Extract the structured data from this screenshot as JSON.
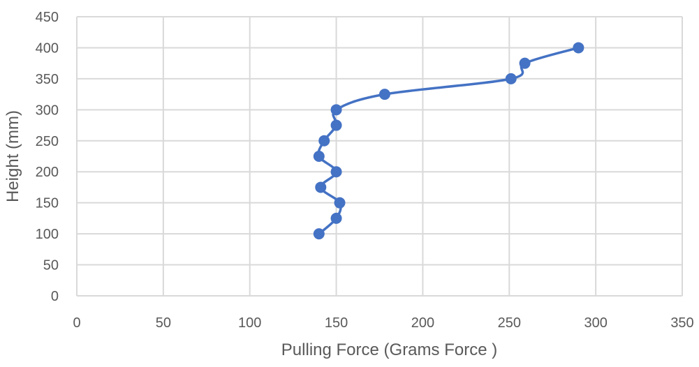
{
  "chart_data": {
    "type": "scatter",
    "title": "",
    "xlabel": "Pulling Force (Grams Force )",
    "ylabel": "Height (mm)",
    "xlim": [
      0,
      350
    ],
    "ylim": [
      0,
      450
    ],
    "xticks": [
      0,
      50,
      100,
      150,
      200,
      250,
      300,
      350
    ],
    "yticks": [
      0,
      50,
      100,
      150,
      200,
      250,
      300,
      350,
      400,
      450
    ],
    "xtick_labels": [
      "0",
      "50",
      "100",
      "150",
      "200",
      "250",
      "300",
      "350"
    ],
    "ytick_labels": [
      "0",
      "50",
      "100",
      "150",
      "200",
      "250",
      "300",
      "350",
      "400",
      "450"
    ],
    "grid": true,
    "legend": "none",
    "line_style": "smooth",
    "marker": "circle",
    "series_color": "#4472C4",
    "grid_color": "#D9D9D9",
    "text_color": "#595959",
    "series": [
      {
        "x": [
          140,
          150,
          152,
          141,
          150,
          140,
          143,
          150,
          150,
          178,
          251,
          259,
          290
        ],
        "y": [
          100,
          125,
          150,
          175,
          200,
          225,
          250,
          275,
          300,
          325,
          350,
          375,
          400
        ]
      }
    ]
  }
}
